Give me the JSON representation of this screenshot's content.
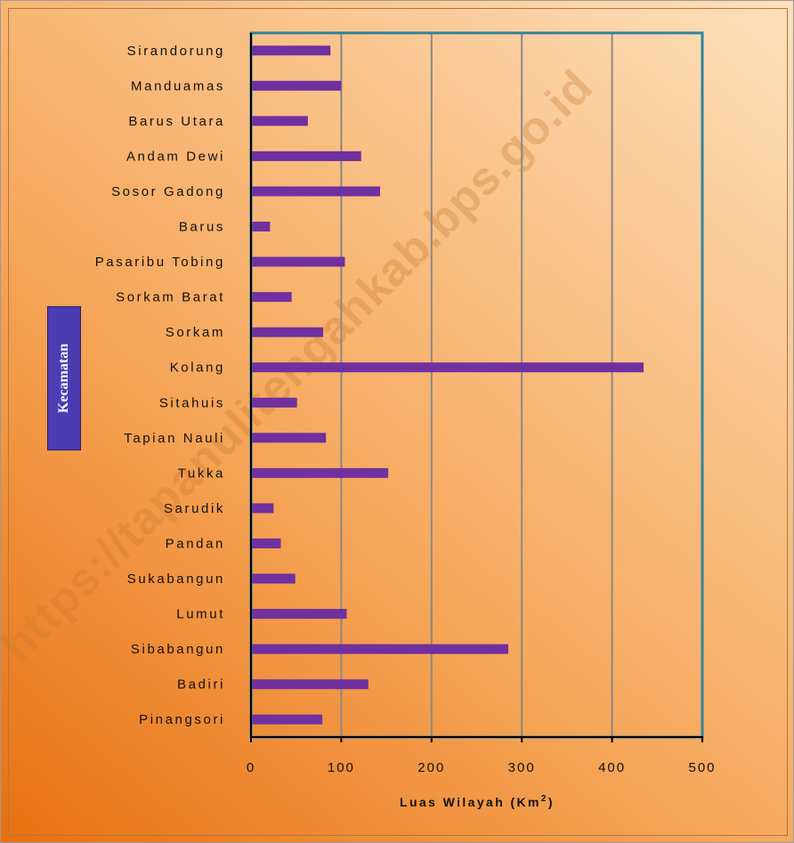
{
  "colors": {
    "bar": "#7030a0",
    "frame": "#31849b",
    "gridline": "#888888",
    "axis": "#000000",
    "ylabel_box": "#4b3cb2"
  },
  "watermark_text": "https://tapanulitengahkab.bps.go.id",
  "chart_data": {
    "type": "bar",
    "orientation": "horizontal",
    "categories": [
      "Pinangsori",
      "Badiri",
      "Sibabangun",
      "Lumut",
      "Sukabangun",
      "Pandan",
      "Sarudik",
      "Tukka",
      "Tapian Nauli",
      "Sitahuis",
      "Kolang",
      "Sorkam",
      "Sorkam Barat",
      "Pasaribu Tobing",
      "Barus",
      "Sosor Gadong",
      "Andam Dewi",
      "Barus Utara",
      "Manduamas",
      "Sirandorung"
    ],
    "values": [
      79,
      130,
      285,
      106,
      49,
      33,
      25,
      152,
      83,
      51,
      435,
      80,
      45,
      104,
      21,
      143,
      122,
      63,
      100,
      88
    ],
    "xlabel": "Luas Wilayah (Km",
    "xlabel_superscript": "2",
    "xlabel_close": ")",
    "ylabel": "Kecamatan",
    "xlim": [
      0,
      500
    ],
    "xticks": [
      0,
      100,
      200,
      300,
      400,
      500
    ],
    "grid": true,
    "legend": "none"
  }
}
